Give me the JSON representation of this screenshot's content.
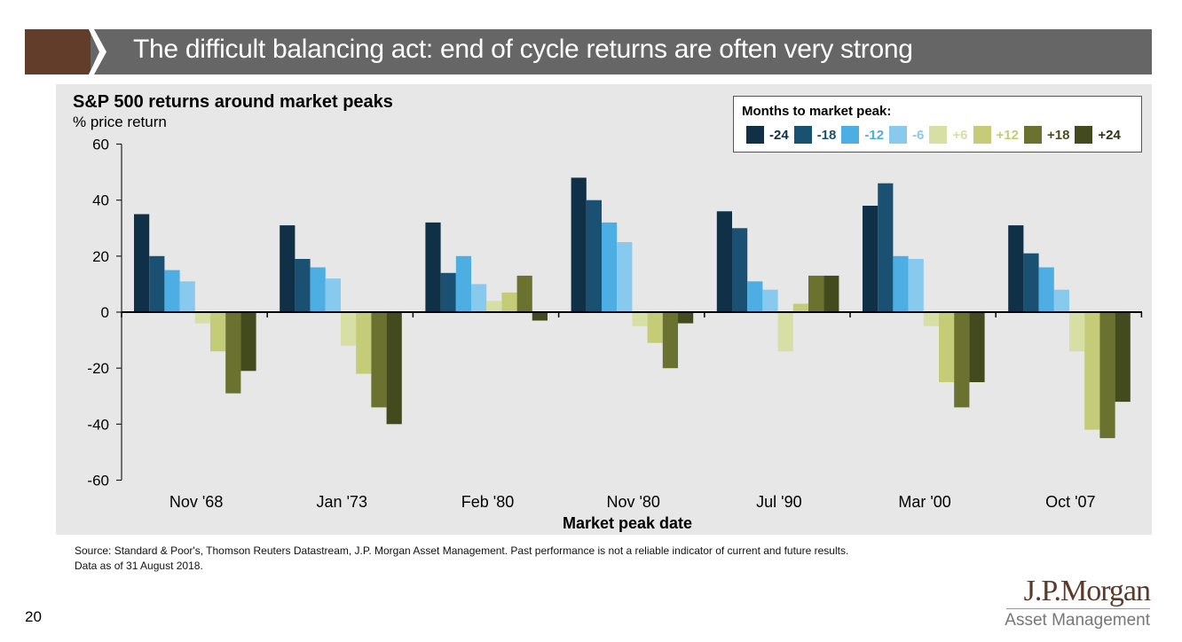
{
  "header": {
    "title": "The difficult balancing act: end of cycle returns are often very strong",
    "arrow_color": "#623d2a",
    "band_color": "#666666"
  },
  "chart_data": {
    "type": "bar",
    "title": "S&P 500 returns around market peaks",
    "ylabel": "% price return",
    "xlabel": "Market peak date",
    "ylim": [
      -60,
      60
    ],
    "yticks": [
      60,
      40,
      20,
      0,
      -20,
      -40,
      -60
    ],
    "grid": false,
    "legend_title": "Months to market peak:",
    "legend_position": "top-right",
    "categories": [
      "Nov '68",
      "Jan '73",
      "Feb '80",
      "Nov '80",
      "Jul '90",
      "Mar '00",
      "Oct '07"
    ],
    "series": [
      {
        "name": "-24",
        "color": "#0f3047",
        "label_color": "#0f3047",
        "values": [
          35,
          31,
          32,
          48,
          36,
          38,
          31
        ]
      },
      {
        "name": "-18",
        "color": "#1a5071",
        "label_color": "#1a5071",
        "values": [
          20,
          19,
          14,
          40,
          30,
          46,
          21
        ]
      },
      {
        "name": "-12",
        "color": "#4caee3",
        "label_color": "#4caee3",
        "values": [
          15,
          16,
          20,
          32,
          11,
          20,
          16
        ]
      },
      {
        "name": "-6",
        "color": "#88c9ee",
        "label_color": "#88c9ee",
        "values": [
          11,
          12,
          10,
          25,
          8,
          19,
          8
        ]
      },
      {
        "name": "+6",
        "color": "#d8dfa4",
        "label_color": "#d8dfa4",
        "values": [
          -4,
          -12,
          4,
          -5,
          -14,
          -5,
          -14
        ]
      },
      {
        "name": "+12",
        "color": "#c4cc78",
        "label_color": "#c4cc78",
        "values": [
          -14,
          -22,
          7,
          -11,
          3,
          -25,
          -42
        ]
      },
      {
        "name": "+18",
        "color": "#6b7230",
        "label_color": "#4a4f1f",
        "values": [
          -29,
          -34,
          13,
          -20,
          13,
          -34,
          -45
        ]
      },
      {
        "name": "+24",
        "color": "#434a1d",
        "label_color": "#2f3415",
        "values": [
          -21,
          -40,
          -3,
          -4,
          13,
          -25,
          -32
        ]
      }
    ]
  },
  "footer": {
    "source_line1": "Source: Standard & Poor's, Thomson Reuters Datastream, J.P. Morgan Asset Management. Past performance is not a reliable indicator of current and future results.",
    "source_line2": "Data as of 31 August 2018.",
    "page_number": "20",
    "logo_main": "J.P.Morgan",
    "logo_sub": "Asset Management"
  }
}
